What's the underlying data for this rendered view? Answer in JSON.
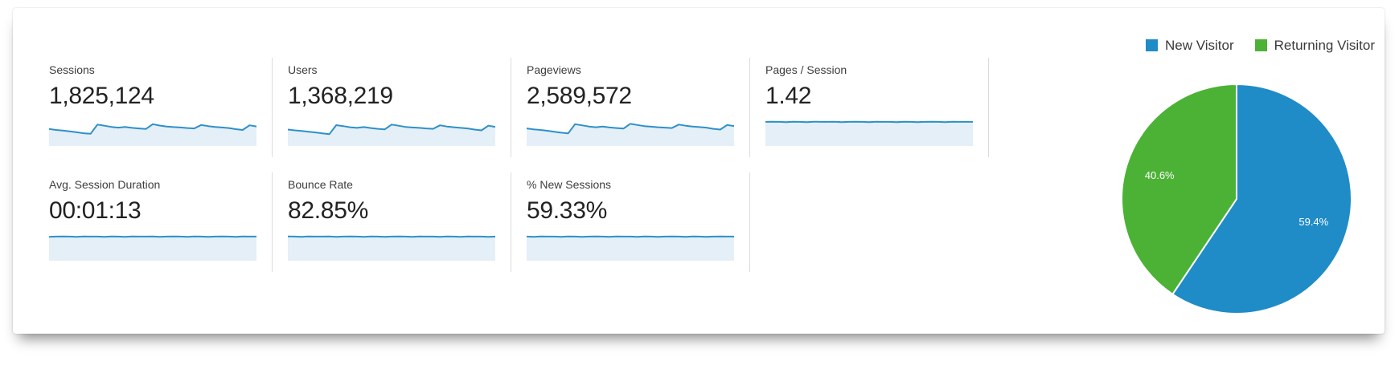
{
  "metrics": [
    {
      "label": "Sessions",
      "value": "1,825,124",
      "spark": [
        0.55,
        0.5,
        0.47,
        0.43,
        0.38,
        0.33,
        0.3,
        0.78,
        0.72,
        0.66,
        0.62,
        0.66,
        0.61,
        0.58,
        0.55,
        0.8,
        0.73,
        0.68,
        0.65,
        0.63,
        0.6,
        0.58,
        0.76,
        0.7,
        0.66,
        0.63,
        0.6,
        0.54,
        0.5,
        0.74,
        0.68
      ]
    },
    {
      "label": "Users",
      "value": "1,368,219",
      "spark": [
        0.52,
        0.48,
        0.45,
        0.41,
        0.37,
        0.32,
        0.28,
        0.75,
        0.7,
        0.64,
        0.61,
        0.65,
        0.6,
        0.56,
        0.53,
        0.78,
        0.72,
        0.66,
        0.63,
        0.61,
        0.58,
        0.56,
        0.74,
        0.68,
        0.64,
        0.61,
        0.58,
        0.52,
        0.48,
        0.72,
        0.66
      ]
    },
    {
      "label": "Pageviews",
      "value": "2,589,572",
      "spark": [
        0.58,
        0.53,
        0.5,
        0.46,
        0.41,
        0.36,
        0.32,
        0.8,
        0.74,
        0.68,
        0.64,
        0.68,
        0.63,
        0.6,
        0.57,
        0.82,
        0.76,
        0.7,
        0.67,
        0.64,
        0.62,
        0.6,
        0.78,
        0.72,
        0.68,
        0.65,
        0.62,
        0.56,
        0.52,
        0.76,
        0.7
      ]
    },
    {
      "label": "Pages / Session",
      "value": "1.42",
      "spark": [
        0.92,
        0.93,
        0.92,
        0.91,
        0.93,
        0.92,
        0.91,
        0.93,
        0.92,
        0.92,
        0.93,
        0.91,
        0.92,
        0.93,
        0.92,
        0.91,
        0.93,
        0.92,
        0.92,
        0.91,
        0.93,
        0.92,
        0.91,
        0.92,
        0.93,
        0.92,
        0.91,
        0.93,
        0.92,
        0.92,
        0.92
      ]
    },
    {
      "label": "Avg. Session Duration",
      "value": "00:01:13",
      "spark": [
        0.91,
        0.92,
        0.93,
        0.92,
        0.91,
        0.93,
        0.92,
        0.92,
        0.91,
        0.93,
        0.92,
        0.91,
        0.93,
        0.92,
        0.92,
        0.93,
        0.91,
        0.92,
        0.93,
        0.92,
        0.91,
        0.93,
        0.92,
        0.91,
        0.92,
        0.93,
        0.92,
        0.91,
        0.93,
        0.92,
        0.92
      ]
    },
    {
      "label": "Bounce Rate",
      "value": "82.85%",
      "spark": [
        0.93,
        0.92,
        0.91,
        0.93,
        0.92,
        0.92,
        0.93,
        0.91,
        0.92,
        0.93,
        0.92,
        0.91,
        0.93,
        0.92,
        0.91,
        0.92,
        0.93,
        0.92,
        0.91,
        0.93,
        0.92,
        0.92,
        0.91,
        0.93,
        0.92,
        0.91,
        0.93,
        0.92,
        0.92,
        0.91,
        0.92
      ]
    },
    {
      "label": "% New Sessions",
      "value": "59.33%",
      "spark": [
        0.92,
        0.91,
        0.93,
        0.92,
        0.92,
        0.91,
        0.93,
        0.92,
        0.91,
        0.92,
        0.93,
        0.92,
        0.91,
        0.93,
        0.92,
        0.92,
        0.91,
        0.93,
        0.92,
        0.91,
        0.92,
        0.93,
        0.92,
        0.91,
        0.93,
        0.92,
        0.91,
        0.92,
        0.93,
        0.92,
        0.92
      ]
    }
  ],
  "colors": {
    "spark_line": "#2e90c8",
    "spark_fill": "#e4eff8",
    "divider": "#dcdcdc",
    "label_text": "#3d3d3d",
    "value_text": "#222222"
  },
  "chart_data": {
    "type": "pie",
    "title": "",
    "labels": [
      "New Visitor",
      "Returning Visitor"
    ],
    "values": [
      59.4,
      40.6
    ],
    "value_labels": [
      "59.4%",
      "40.6%"
    ],
    "colors": [
      "#1f8cc7",
      "#4cb236"
    ],
    "start_angle_deg": 0,
    "direction": "clockwise",
    "legend_position": "top-right",
    "slice_label_color": "#ffffff"
  }
}
